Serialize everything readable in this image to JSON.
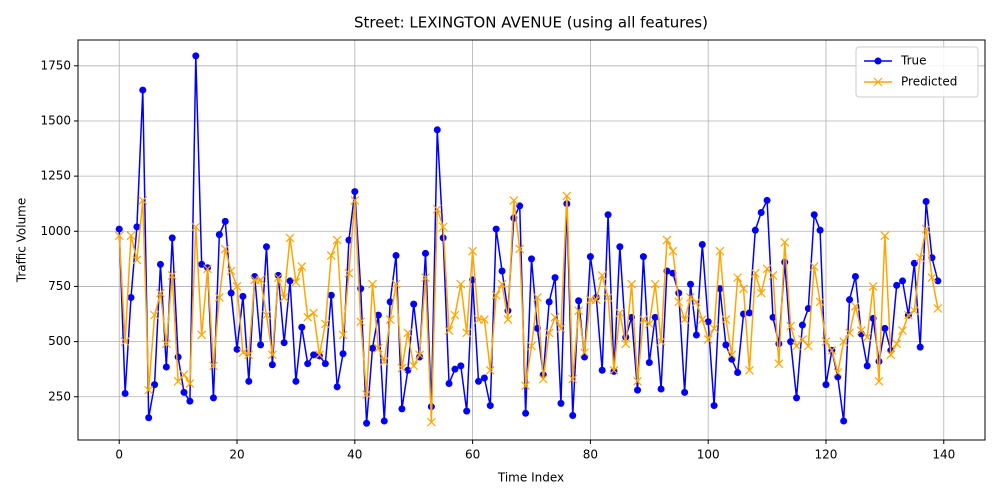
{
  "chart_data": {
    "type": "line",
    "title": "Street: LEXINGTON AVENUE (using all features)",
    "x_label": "Time Index",
    "y_label": "Traffic Volume",
    "x": [
      0,
      1,
      2,
      3,
      4,
      5,
      6,
      7,
      8,
      9,
      10,
      11,
      12,
      13,
      14,
      15,
      16,
      17,
      18,
      19,
      20,
      21,
      22,
      23,
      24,
      25,
      26,
      27,
      28,
      29,
      30,
      31,
      32,
      33,
      34,
      35,
      36,
      37,
      38,
      39,
      40,
      41,
      42,
      43,
      44,
      45,
      46,
      47,
      48,
      49,
      50,
      51,
      52,
      53,
      54,
      55,
      56,
      57,
      58,
      59,
      60,
      61,
      62,
      63,
      64,
      65,
      66,
      67,
      68,
      69,
      70,
      71,
      72,
      73,
      74,
      75,
      76,
      77,
      78,
      79,
      80,
      81,
      82,
      83,
      84,
      85,
      86,
      87,
      88,
      89,
      90,
      91,
      92,
      93,
      94,
      95,
      96,
      97,
      98,
      99,
      100,
      101,
      102,
      103,
      104,
      105,
      106,
      107,
      108,
      109,
      110,
      111,
      112,
      113,
      114,
      115,
      116,
      117,
      118,
      119,
      120,
      121,
      122,
      123,
      124,
      125,
      126,
      127,
      128,
      129,
      130,
      131,
      132,
      133,
      134,
      135,
      136,
      137,
      138,
      139
    ],
    "series": [
      {
        "name": "True",
        "color": "#0000ff",
        "marker": "o",
        "values": [
          1010,
          265,
          700,
          1020,
          1640,
          155,
          305,
          850,
          385,
          970,
          430,
          270,
          230,
          1795,
          850,
          835,
          245,
          985,
          1045,
          720,
          465,
          705,
          320,
          795,
          485,
          930,
          395,
          800,
          495,
          775,
          320,
          565,
          400,
          440,
          435,
          400,
          710,
          295,
          445,
          960,
          1180,
          740,
          130,
          470,
          620,
          140,
          680,
          890,
          195,
          370,
          670,
          430,
          900,
          205,
          1460,
          970,
          310,
          375,
          390,
          185,
          780,
          320,
          335,
          210,
          1010,
          820,
          640,
          1060,
          1115,
          175,
          875,
          560,
          350,
          680,
          790,
          220,
          1125,
          165,
          685,
          430,
          885,
          700,
          370,
          1075,
          365,
          930,
          520,
          610,
          280,
          885,
          405,
          610,
          285,
          820,
          810,
          720,
          270,
          760,
          530,
          940,
          590,
          210,
          740,
          485,
          420,
          360,
          625,
          630,
          1005,
          1085,
          1140,
          610,
          490,
          860,
          500,
          245,
          575,
          650,
          1075,
          1005,
          305,
          460,
          340,
          140,
          690,
          795,
          535,
          390,
          605,
          410,
          560,
          460,
          755,
          775,
          620,
          855,
          475,
          1135,
          880,
          775
        ]
      },
      {
        "name": "Predicted",
        "color": "#ffa500",
        "marker": "x",
        "values": [
          980,
          500,
          980,
          870,
          1140,
          280,
          620,
          720,
          490,
          800,
          320,
          350,
          310,
          1020,
          530,
          830,
          390,
          700,
          920,
          820,
          750,
          450,
          440,
          780,
          780,
          620,
          440,
          790,
          700,
          970,
          770,
          840,
          610,
          630,
          440,
          580,
          890,
          960,
          530,
          810,
          1140,
          590,
          260,
          760,
          470,
          410,
          600,
          760,
          380,
          540,
          390,
          440,
          790,
          135,
          1100,
          1020,
          550,
          620,
          760,
          540,
          910,
          600,
          600,
          370,
          710,
          760,
          600,
          1140,
          920,
          300,
          480,
          700,
          330,
          540,
          610,
          560,
          1160,
          330,
          640,
          450,
          690,
          690,
          800,
          700,
          370,
          630,
          490,
          760,
          320,
          600,
          580,
          760,
          500,
          960,
          910,
          680,
          600,
          700,
          680,
          600,
          510,
          560,
          910,
          600,
          440,
          790,
          740,
          370,
          810,
          720,
          830,
          800,
          400,
          950,
          570,
          480,
          510,
          480,
          840,
          680,
          500,
          460,
          360,
          500,
          540,
          660,
          550,
          520,
          750,
          320,
          980,
          440,
          490,
          550,
          620,
          640,
          880,
          1010,
          790,
          650
        ]
      }
    ],
    "xlim": [
      -7,
      147
    ],
    "ylim": [
      54,
      1867
    ],
    "xticks": [
      0,
      20,
      40,
      60,
      80,
      100,
      120,
      140
    ],
    "yticks": [
      250,
      500,
      750,
      1000,
      1250,
      1500,
      1750
    ],
    "grid": true,
    "legend": "upper-right"
  }
}
